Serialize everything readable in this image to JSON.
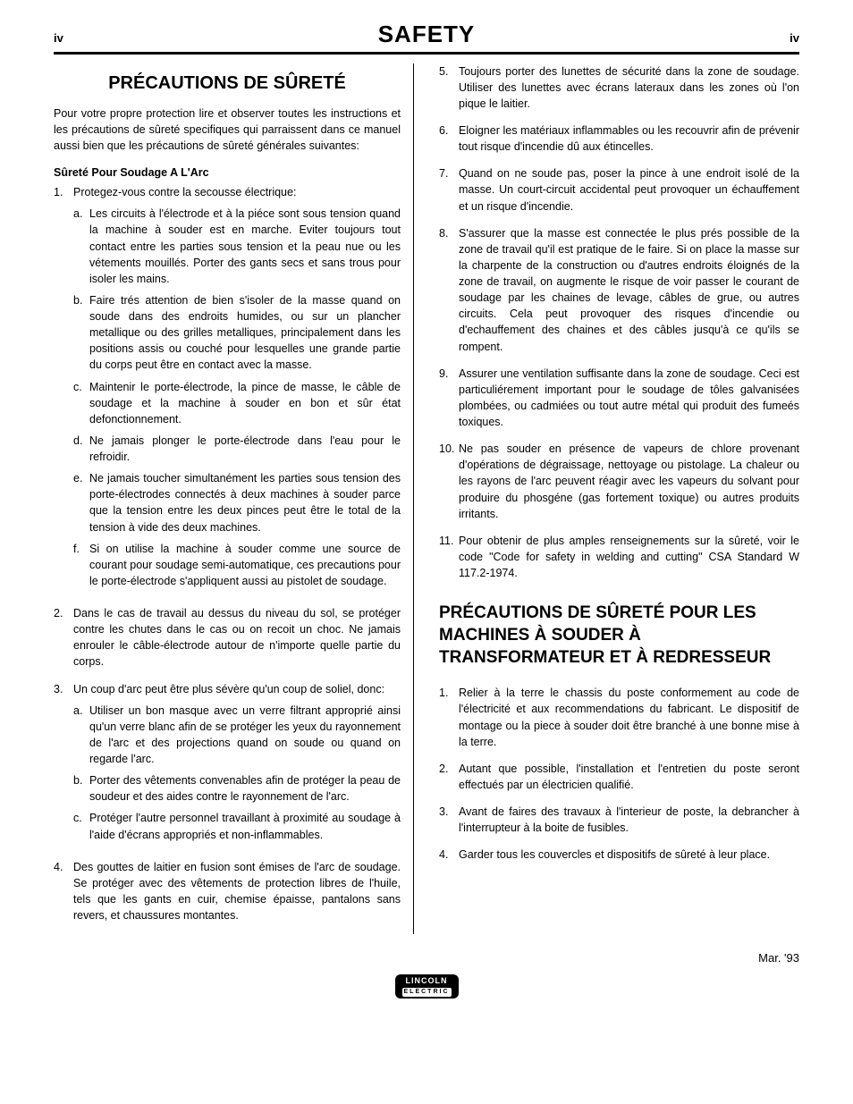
{
  "header": {
    "page_number_left": "iv",
    "title": "SAFETY",
    "page_number_right": "iv"
  },
  "left": {
    "section_title": "PRÉCAUTIONS DE SÛRETÉ",
    "intro": "Pour votre propre protection lire et observer toutes les instructions et les précautions de sûreté specifiques qui parraissent dans ce manuel aussi bien que les précautions de sûreté générales suivantes:",
    "subhead": "Sûreté Pour Soudage A L'Arc",
    "items": [
      {
        "n": "1.",
        "text": "Protegez-vous contre la secousse électrique:",
        "sub": [
          {
            "a": "a.",
            "text": "Les circuits à l'électrode et à la piéce sont sous tension quand la machine à souder est en marche. Eviter toujours tout contact entre les parties sous tension et la peau nue ou les vétements mouillés. Porter des gants secs et sans trous pour isoler les mains."
          },
          {
            "a": "b.",
            "text": "Faire trés attention de bien s'isoler de la masse quand on soude dans des endroits humides, ou sur un plancher metallique ou des grilles metalliques, principalement dans les positions assis ou couché pour lesquelles une grande partie du corps peut être en contact avec la masse."
          },
          {
            "a": "c.",
            "text": "Maintenir le porte-électrode, la pince de masse, le câble de soudage et la machine à souder en bon et sûr état defonctionnement."
          },
          {
            "a": "d.",
            "text": "Ne jamais plonger le porte-électrode dans l'eau pour le refroidir."
          },
          {
            "a": "e.",
            "text": "Ne jamais toucher simultanément les parties sous tension des porte-électrodes connectés à deux machines à souder parce que la tension entre les deux pinces peut être le total de la tension à vide des deux machines."
          },
          {
            "a": "f.",
            "text": "Si on utilise la machine à souder comme une source de courant pour soudage semi-automatique, ces precautions pour le porte-électrode s'appliquent aussi au pistolet de soudage."
          }
        ]
      },
      {
        "n": "2.",
        "text": "Dans le cas de travail au dessus du niveau du sol, se protéger contre les chutes dans le cas ou on recoit un choc. Ne jamais enrouler le câble-électrode autour de n'importe quelle partie du corps."
      },
      {
        "n": "3.",
        "text": "Un coup d'arc peut être plus sévère qu'un coup de soliel, donc:",
        "sub": [
          {
            "a": "a.",
            "text": "Utiliser un bon masque avec un verre filtrant approprié ainsi qu'un verre blanc afin de se protéger les yeux du rayonnement de l'arc et des projections quand on soude ou quand on regarde l'arc."
          },
          {
            "a": "b.",
            "text": "Porter des vêtements convenables afin de protéger la peau de soudeur et des aides contre le rayonnement de l'arc."
          },
          {
            "a": "c.",
            "text": "Protéger l'autre personnel travaillant à proximité au soudage à l'aide d'écrans appropriés et non-inflammables."
          }
        ]
      },
      {
        "n": "4.",
        "text": "Des gouttes de laitier en fusion sont émises de l'arc de soudage. Se protéger avec des vêtements de protection libres de l'huile, tels que les gants en cuir, chemise épaisse, pantalons sans revers, et chaussures montantes."
      }
    ]
  },
  "right": {
    "items": [
      {
        "n": "5.",
        "text": "Toujours porter des lunettes de sécurité dans la zone de soudage. Utiliser des lunettes avec écrans lateraux dans les zones où l'on pique le laitier."
      },
      {
        "n": "6.",
        "text": "Eloigner les matériaux inflammables ou les recouvrir afin de prévenir tout risque d'incendie dû aux étincelles."
      },
      {
        "n": "7.",
        "text": "Quand on ne soude pas, poser la pince à une endroit isolé de la masse. Un court-circuit accidental peut provoquer un échauffement et un risque d'incendie."
      },
      {
        "n": "8.",
        "text": "S'assurer que la masse est connectée le plus prés possible de la zone de travail qu'il est pratique de le faire. Si on place la masse sur la charpente de la construction ou d'autres endroits éloignés de la zone de travail, on augmente le risque de voir passer le courant de soudage par les chaines de levage, câbles de grue, ou autres circuits. Cela peut provoquer des risques d'incendie ou d'echauffement des chaines et des câbles jusqu'à ce qu'ils se rompent."
      },
      {
        "n": "9.",
        "text": "Assurer une ventilation suffisante dans la zone de soudage. Ceci est particuliérement important pour le soudage de tôles galvanisées plombées, ou cadmiées ou tout autre métal qui produit des fumeés toxiques."
      },
      {
        "n": "10.",
        "text": "Ne pas souder en présence de vapeurs de chlore provenant d'opérations de dégraissage, nettoyage ou pistolage. La chaleur ou les rayons de l'arc peuvent réagir avec les vapeurs du solvant pour produire du phosgéne (gas fortement toxique) ou autres produits irritants."
      },
      {
        "n": "11.",
        "text": "Pour obtenir de plus amples renseignements sur la sûreté, voir le code \"Code for safety in welding and cutting\" CSA Standard W 117.2-1974."
      }
    ],
    "section2_title": "PRÉCAUTIONS DE SÛRETÉ POUR LES MACHINES À SOUDER À TRANSFORMATEUR ET À REDRESSEUR",
    "section2_items": [
      {
        "n": "1.",
        "text": "Relier à la terre le chassis du poste conformement au code de l'électricité et aux recommendations du fabricant. Le dispositif de montage ou la piece à souder doit être branché à une bonne mise à la terre."
      },
      {
        "n": "2.",
        "text": "Autant que possible, l'installation et l'entretien du poste seront effectués par un électricien qualifié."
      },
      {
        "n": "3.",
        "text": "Avant de faires des travaux à l'interieur de poste, la debrancher à l'interrupteur à la boite de fusibles."
      },
      {
        "n": "4.",
        "text": "Garder tous les couvercles et dispositifs de sûreté à leur place."
      }
    ]
  },
  "footer": {
    "date": "Mar. '93",
    "logo_top": "LINCOLN",
    "logo_bottom": "ELECTRIC"
  }
}
